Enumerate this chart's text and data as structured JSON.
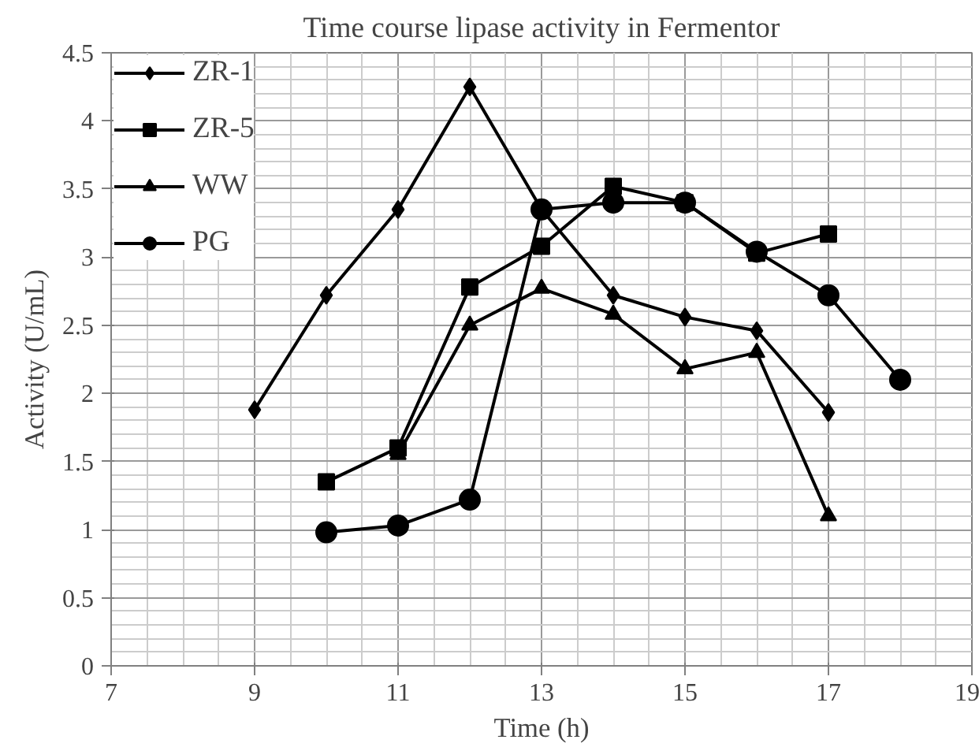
{
  "chart_data": {
    "type": "line",
    "title": "Time course lipase activity in Fermentor",
    "xlabel": "Time (h)",
    "ylabel": "Activity (U/mL)",
    "xlim": [
      7,
      19
    ],
    "xticks": [
      7,
      9,
      11,
      13,
      15,
      17,
      19
    ],
    "ylim": [
      0,
      4.5
    ],
    "yticks": [
      0,
      0.5,
      1,
      1.5,
      2,
      2.5,
      3,
      3.5,
      4,
      4.5
    ],
    "grid": true,
    "legend": "top left",
    "line_style": "solid",
    "series": [
      {
        "name": "ZR-1",
        "color": "#000000",
        "marker": "diamond",
        "x": [
          9,
          10,
          11,
          12,
          13,
          14,
          15,
          16,
          17
        ],
        "values": [
          1.88,
          2.72,
          3.35,
          4.25,
          3.35,
          2.72,
          2.56,
          2.46,
          1.86
        ]
      },
      {
        "name": "ZR-5",
        "color": "#000000",
        "marker": "square",
        "x": [
          10,
          11,
          12,
          13,
          14,
          15,
          16,
          17
        ],
        "values": [
          1.35,
          1.6,
          2.78,
          3.08,
          3.52,
          3.4,
          3.03,
          3.17
        ]
      },
      {
        "name": "WW",
        "color": "#000000",
        "marker": "triangle",
        "x": [
          11,
          12,
          13,
          14,
          15,
          16,
          17
        ],
        "values": [
          1.55,
          2.5,
          2.77,
          2.58,
          2.18,
          2.3,
          1.1
        ]
      },
      {
        "name": "PG",
        "color": "#000000",
        "marker": "circle",
        "x": [
          10,
          11,
          12,
          13,
          14,
          15,
          16,
          17,
          18
        ],
        "values": [
          0.98,
          1.03,
          1.22,
          3.35,
          3.4,
          3.4,
          3.04,
          2.72,
          2.1
        ]
      }
    ]
  }
}
